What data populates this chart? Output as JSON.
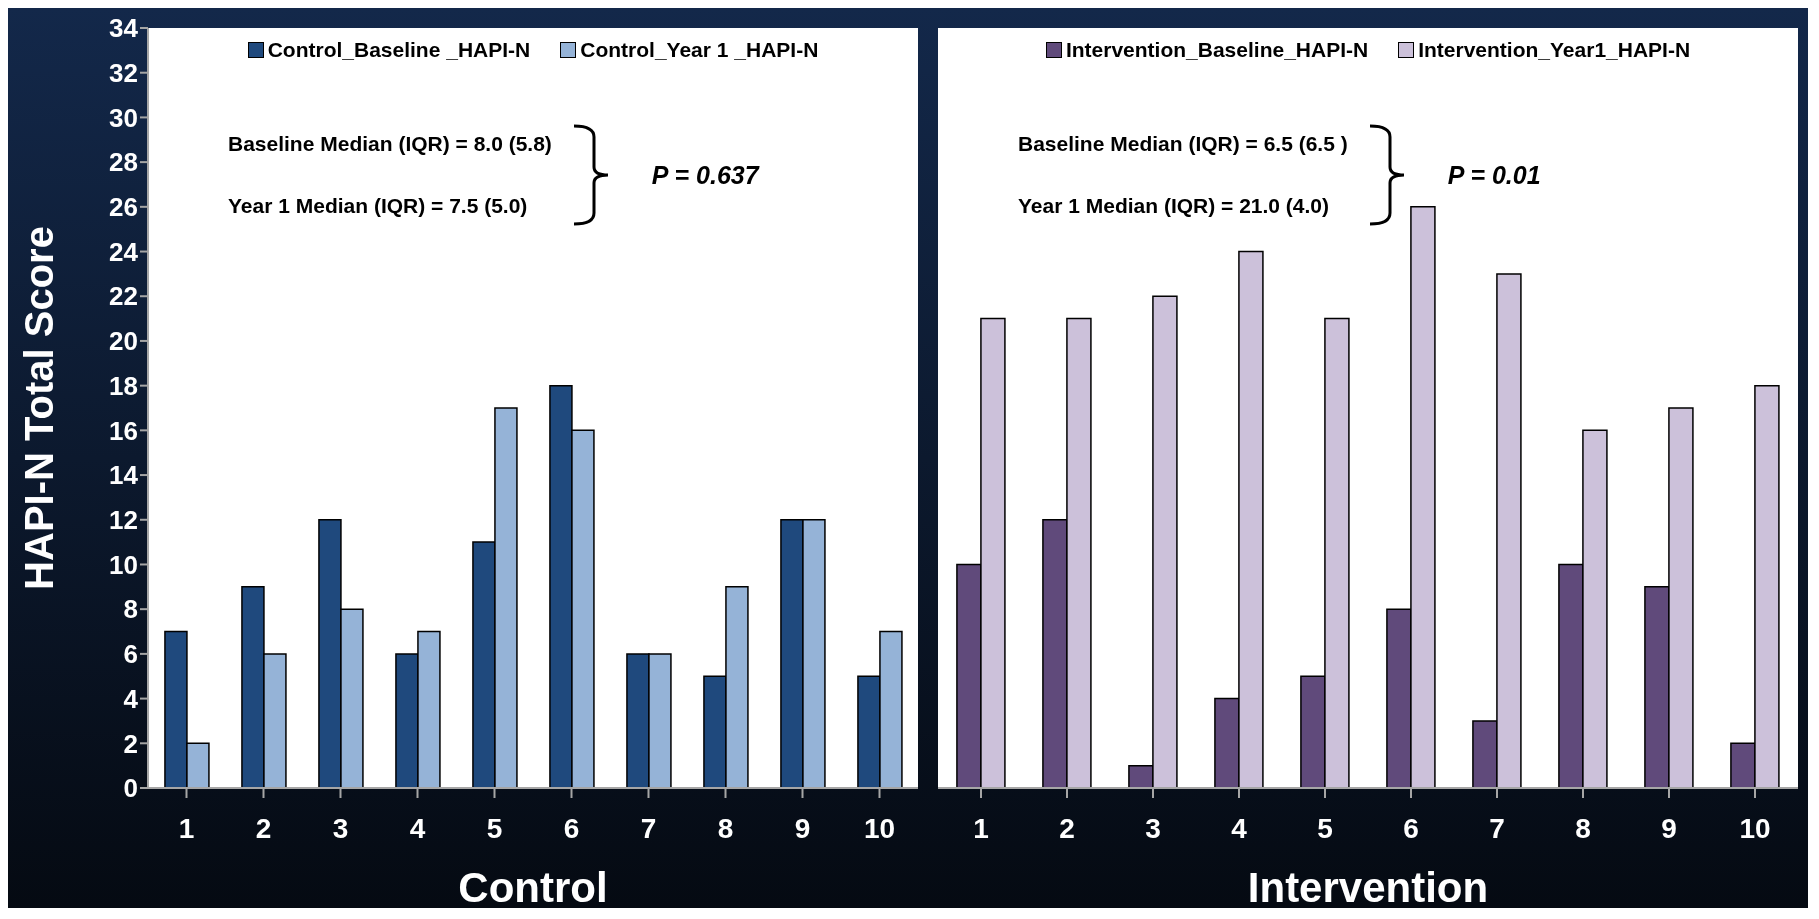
{
  "chart_data": [
    {
      "type": "bar",
      "xlabel": "Control",
      "ylabel": "HAPI-N Total Score",
      "categories": [
        "1",
        "2",
        "3",
        "4",
        "5",
        "6",
        "7",
        "8",
        "9",
        "10"
      ],
      "series": [
        {
          "name": "Control_Baseline _HAPI-N",
          "color": "#1f497d",
          "values": [
            7,
            9,
            12,
            6,
            11,
            18,
            6,
            5,
            12,
            5
          ]
        },
        {
          "name": "Control_Year 1 _HAPI-N",
          "color": "#95b3d7",
          "values": [
            2,
            6,
            8,
            7,
            17,
            16,
            6,
            9,
            12,
            7
          ]
        }
      ],
      "annotations": [
        "Baseline Median (IQR) = 8.0 (5.8)",
        "Year 1 Median (IQR) = 7.5 (5.0)",
        "P = 0.637"
      ],
      "ylim": [
        0,
        34
      ],
      "yticks": [
        0,
        2,
        4,
        6,
        8,
        10,
        12,
        14,
        16,
        18,
        20,
        22,
        24,
        26,
        28,
        30,
        32,
        34
      ],
      "legend": "top",
      "grid": false
    },
    {
      "type": "bar",
      "xlabel": "Intervention",
      "categories": [
        "1",
        "2",
        "3",
        "4",
        "5",
        "6",
        "7",
        "8",
        "9",
        "10"
      ],
      "series": [
        {
          "name": "Intervention_Baseline_HAPI-N",
          "color": "#604a7b",
          "values": [
            10,
            12,
            1,
            4,
            5,
            8,
            3,
            10,
            9,
            2
          ]
        },
        {
          "name": "Intervention_Year1_HAPI-N",
          "color": "#ccc1da",
          "values": [
            21,
            21,
            22,
            24,
            21,
            26,
            23,
            16,
            17,
            18
          ]
        }
      ],
      "annotations": [
        "Baseline Median (IQR) = 6.5 (6.5 )",
        "Year 1 Median (IQR) = 21.0 (4.0)",
        "P = 0.01"
      ],
      "ylim": [
        0,
        34
      ],
      "yticks": [
        0,
        2,
        4,
        6,
        8,
        10,
        12,
        14,
        16,
        18,
        20,
        22,
        24,
        26,
        28,
        30,
        32,
        34
      ],
      "tick_labels": "x",
      "legend": "top",
      "grid": false
    }
  ]
}
